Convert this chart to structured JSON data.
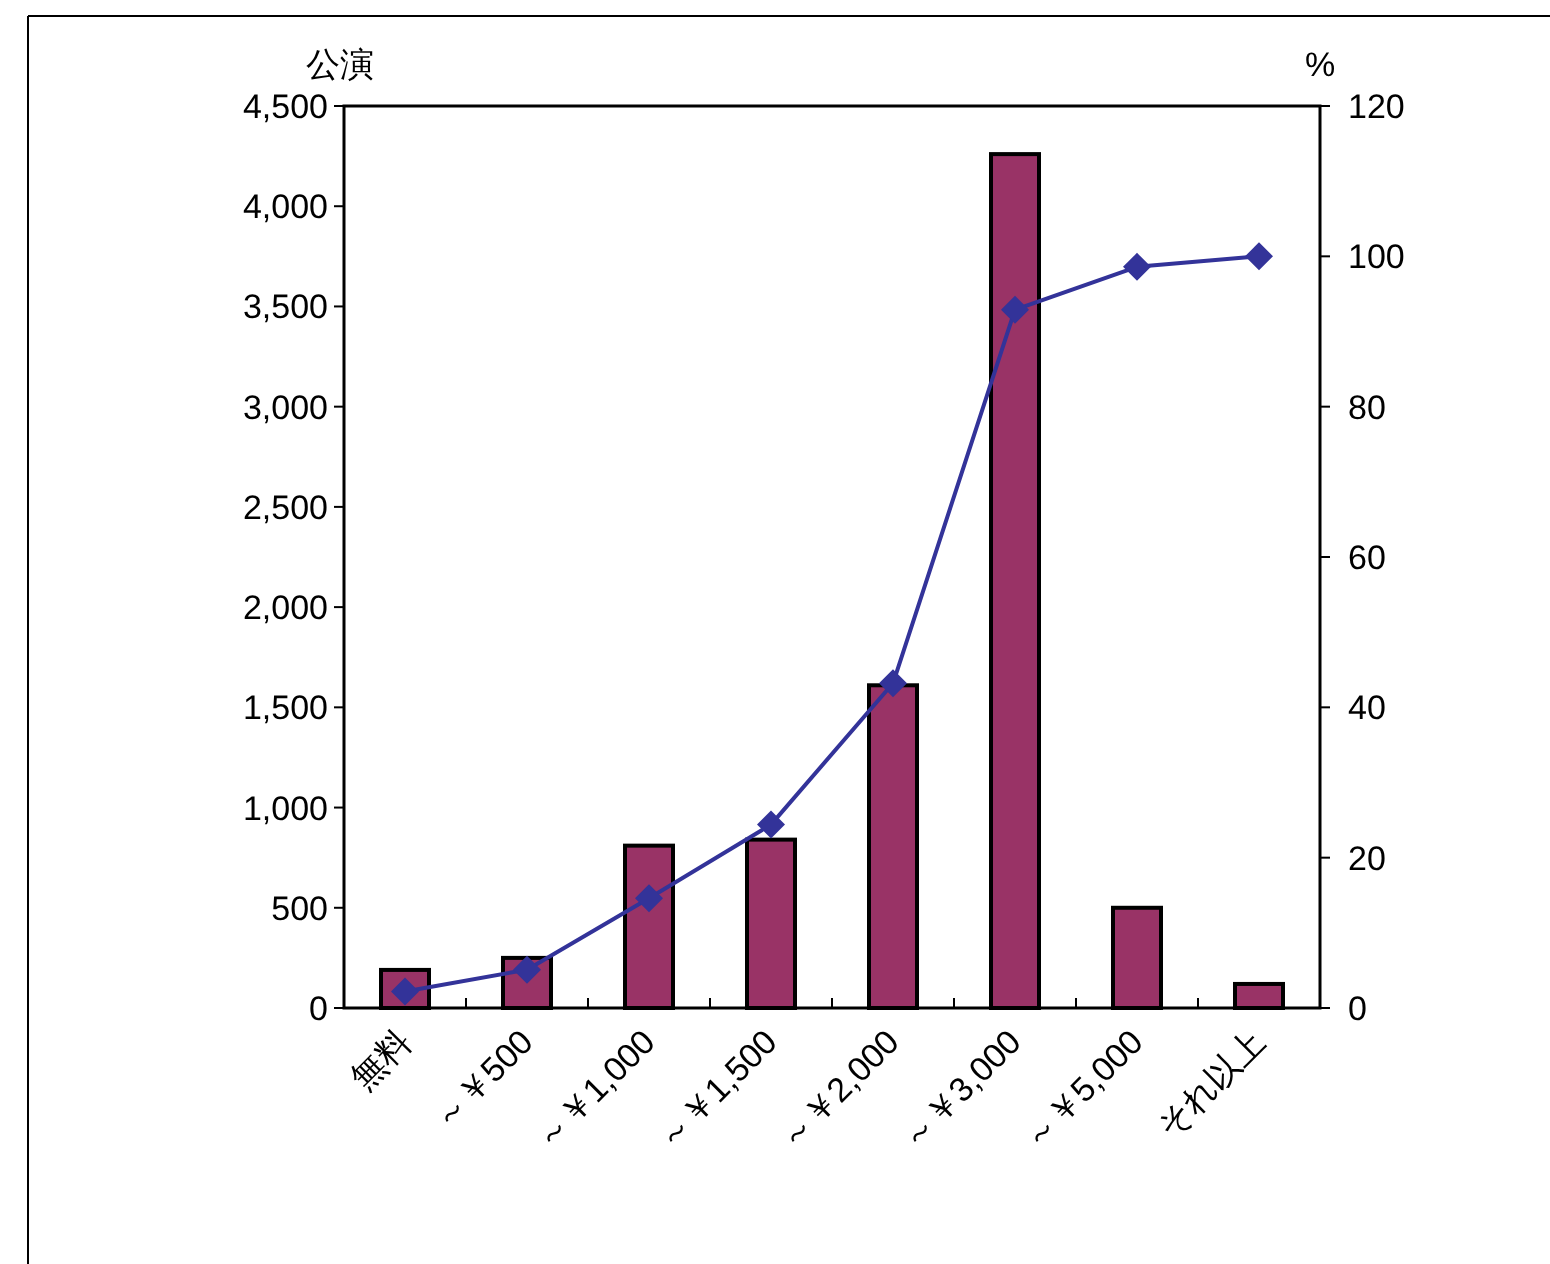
{
  "chart_data": {
    "type": "bar",
    "ylabel": "公演",
    "y2label": "%",
    "categories": [
      "無料",
      "～￥500",
      "～￥1,000",
      "～￥1,500",
      "～￥2,000",
      "～￥3,000",
      "～￥5,000",
      "それ以上"
    ],
    "series": [
      {
        "color": "#993366",
        "values": [
          190,
          250,
          810,
          840,
          1610,
          4260,
          500,
          120
        ]
      },
      {
        "type": "line",
        "axis": "y2",
        "color": "#333399",
        "marker": "diamond",
        "line_style": "solid",
        "values": [
          2.2,
          5.1,
          14.6,
          24.4,
          43.2,
          92.9,
          98.6,
          100
        ]
      }
    ],
    "ylim": [
      0,
      4500
    ],
    "yticks": [
      0,
      500,
      {
        "value": 1000,
        "label": "1,000"
      },
      {
        "value": 1500,
        "label": "1,500"
      },
      {
        "value": 2000,
        "label": "2,000"
      },
      {
        "value": 2500,
        "label": "2,500"
      },
      {
        "value": 3000,
        "label": "3,000"
      },
      {
        "value": 3500,
        "label": "3,500"
      },
      {
        "value": 4000,
        "label": "4,000"
      },
      {
        "value": 4500,
        "label": "4,500"
      }
    ],
    "y2lim": [
      0,
      120
    ],
    "y2ticks": [
      0,
      20,
      40,
      60,
      80,
      100,
      120
    ],
    "grid": false
  }
}
